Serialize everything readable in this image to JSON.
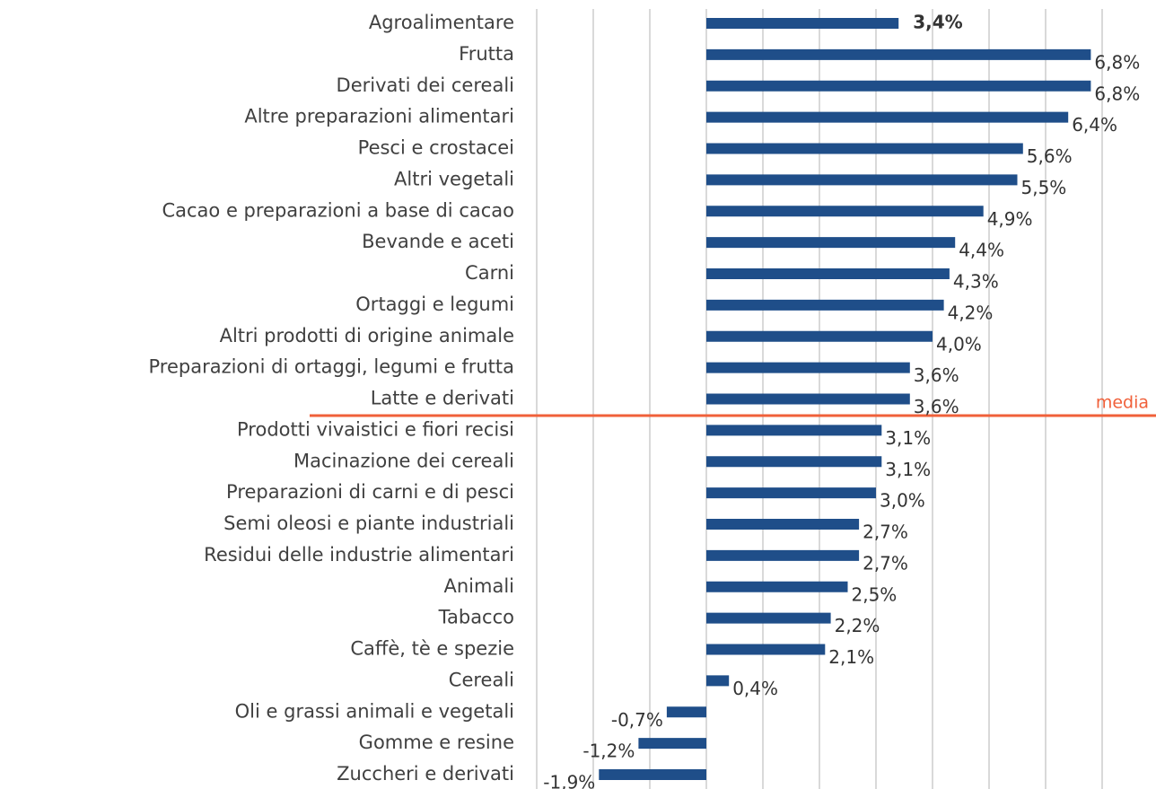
{
  "chart_data": {
    "type": "bar",
    "orientation": "horizontal",
    "color": "#1f4e89",
    "categories": [
      "Agroalimentare",
      "Frutta",
      "Derivati dei cereali",
      "Altre preparazioni alimentari",
      "Pesci e crostacei",
      "Altri vegetali",
      "Cacao e preparazioni a base di cacao",
      "Bevande e aceti",
      "Carni",
      "Ortaggi e legumi",
      "Altri prodotti di origine animale",
      "Preparazioni di ortaggi, legumi e frutta",
      "Latte e derivati",
      "Prodotti vivaistici e fiori recisi",
      "Macinazione dei cereali",
      "Preparazioni di carni e di pesci",
      "Semi oleosi e piante industriali",
      "Residui delle industrie alimentari",
      "Animali",
      "Tabacco",
      "Caffè, tè e spezie",
      "Cereali",
      "Oli e grassi animali e vegetali",
      "Gomme e resine",
      "Zuccheri e derivati"
    ],
    "values": [
      3.4,
      6.8,
      6.8,
      6.4,
      5.6,
      5.5,
      4.9,
      4.4,
      4.3,
      4.2,
      4.0,
      3.6,
      3.6,
      3.1,
      3.1,
      3.0,
      2.7,
      2.7,
      2.5,
      2.2,
      2.1,
      0.4,
      -0.7,
      -1.2,
      -1.9
    ],
    "value_labels": [
      "3,4%",
      "6,8%",
      "6,8%",
      "6,4%",
      "5,6%",
      "5,5%",
      "4,9%",
      "4,4%",
      "4,3%",
      "4,2%",
      "4,0%",
      "3,6%",
      "3,6%",
      "3,1%",
      "3,1%",
      "3,0%",
      "2,7%",
      "2,7%",
      "2,5%",
      "2,2%",
      "2,1%",
      "0,4%",
      "-0,7%",
      "-1,2%",
      "-1,9%"
    ],
    "xlim": [
      -3,
      7
    ],
    "xticks": [
      -3,
      -2,
      -1,
      0,
      1,
      2,
      3,
      4,
      5,
      6,
      7
    ],
    "grid": true,
    "annotation": "media"
  }
}
